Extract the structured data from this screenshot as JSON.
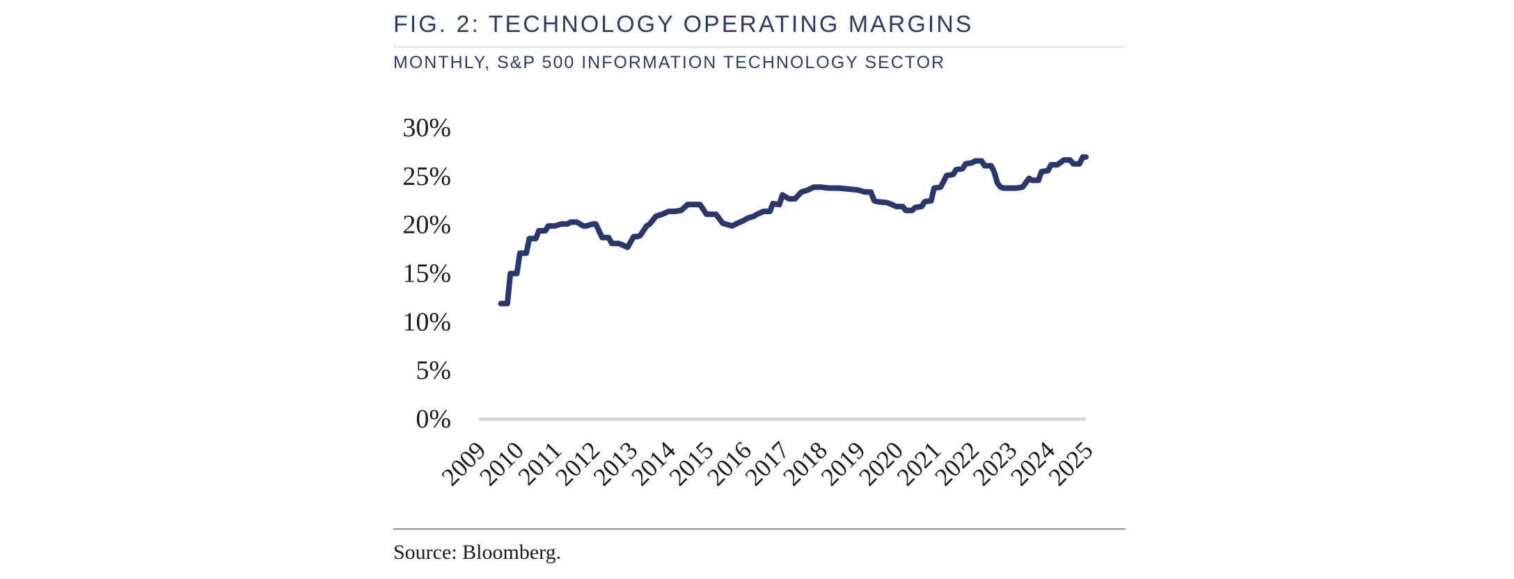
{
  "figure": {
    "title": "FIG. 2: TECHNOLOGY OPERATING MARGINS",
    "subtitle": "MONTHLY, S&P 500 INFORMATION TECHNOLOGY SECTOR",
    "source": "Source: Bloomberg."
  },
  "colors": {
    "series": "#27376f",
    "title": "#2a3a73",
    "baseline": "#d6d6d6"
  },
  "chart_data": {
    "type": "line",
    "title": "",
    "xlabel": "",
    "ylabel": "",
    "ylim": [
      0,
      30
    ],
    "y_ticks": [
      0,
      5,
      10,
      15,
      20,
      25,
      30
    ],
    "y_tick_labels": [
      "0%",
      "5%",
      "10%",
      "15%",
      "20%",
      "25%",
      "30%"
    ],
    "x_tick_labels": [
      "2009",
      "2010",
      "2011",
      "2012",
      "2013",
      "2014",
      "2015",
      "2016",
      "2017",
      "2018",
      "2019",
      "2020",
      "2021",
      "2022",
      "2023",
      "2024",
      "2025"
    ],
    "xlim": [
      2009,
      2025
    ],
    "grid": false,
    "series": [
      {
        "name": "S&P 500 Information Technology Operating Margin",
        "x": [
          2009.58,
          2009.75,
          2009.83,
          2010.0,
          2010.08,
          2010.25,
          2010.33,
          2010.5,
          2010.58,
          2010.75,
          2010.83,
          2011.0,
          2011.17,
          2011.33,
          2011.42,
          2011.58,
          2011.75,
          2011.83,
          2012.0,
          2012.08,
          2012.25,
          2012.42,
          2012.5,
          2012.67,
          2012.75,
          2012.92,
          2013.08,
          2013.17,
          2013.25,
          2013.42,
          2013.5,
          2013.67,
          2013.83,
          2014.0,
          2014.17,
          2014.33,
          2014.5,
          2014.67,
          2014.83,
          2015.0,
          2015.08,
          2015.25,
          2015.42,
          2015.5,
          2015.67,
          2015.83,
          2016.0,
          2016.08,
          2016.25,
          2016.33,
          2016.5,
          2016.67,
          2016.75,
          2016.92,
          2017.0,
          2017.17,
          2017.25,
          2017.33,
          2017.5,
          2017.67,
          2017.83,
          2018.0,
          2018.25,
          2018.5,
          2018.75,
          2019.0,
          2019.17,
          2019.33,
          2019.42,
          2019.5,
          2019.75,
          2019.83,
          2020.0,
          2020.17,
          2020.25,
          2020.42,
          2020.5,
          2020.67,
          2020.75,
          2020.92,
          2021.0,
          2021.17,
          2021.33,
          2021.5,
          2021.58,
          2021.75,
          2021.83,
          2022.0,
          2022.08,
          2022.25,
          2022.33,
          2022.5,
          2022.58,
          2022.67,
          2022.75,
          2022.83,
          2023.0,
          2023.17,
          2023.33,
          2023.5,
          2023.58,
          2023.75,
          2023.83,
          2024.0,
          2024.08,
          2024.25,
          2024.42,
          2024.58,
          2024.67,
          2024.83,
          2024.92,
          2025.0
        ],
        "values": [
          11.9,
          11.9,
          15.0,
          15.0,
          17.1,
          17.1,
          18.6,
          18.6,
          19.4,
          19.4,
          19.9,
          19.9,
          20.1,
          20.1,
          20.3,
          20.3,
          19.9,
          19.9,
          20.1,
          20.1,
          18.7,
          18.7,
          18.1,
          18.1,
          18.0,
          17.7,
          18.8,
          18.8,
          18.9,
          19.9,
          20.1,
          20.9,
          21.1,
          21.4,
          21.4,
          21.5,
          22.1,
          22.1,
          22.1,
          21.1,
          21.1,
          21.1,
          20.2,
          20.1,
          19.9,
          20.2,
          20.5,
          20.7,
          20.9,
          21.1,
          21.4,
          21.4,
          22.2,
          22.1,
          23.1,
          22.7,
          22.7,
          22.7,
          23.4,
          23.6,
          23.9,
          23.9,
          23.8,
          23.8,
          23.7,
          23.6,
          23.4,
          23.4,
          22.5,
          22.4,
          22.3,
          22.2,
          21.9,
          21.9,
          21.5,
          21.5,
          21.8,
          21.9,
          22.4,
          22.5,
          23.8,
          23.9,
          25.1,
          25.2,
          25.7,
          25.8,
          26.3,
          26.4,
          26.6,
          26.6,
          26.1,
          26.1,
          25.5,
          24.3,
          23.9,
          23.8,
          23.8,
          23.8,
          23.9,
          24.8,
          24.6,
          24.6,
          25.5,
          25.6,
          26.2,
          26.2,
          26.7,
          26.7,
          26.3,
          26.3,
          27.0,
          27.0
        ]
      }
    ]
  }
}
